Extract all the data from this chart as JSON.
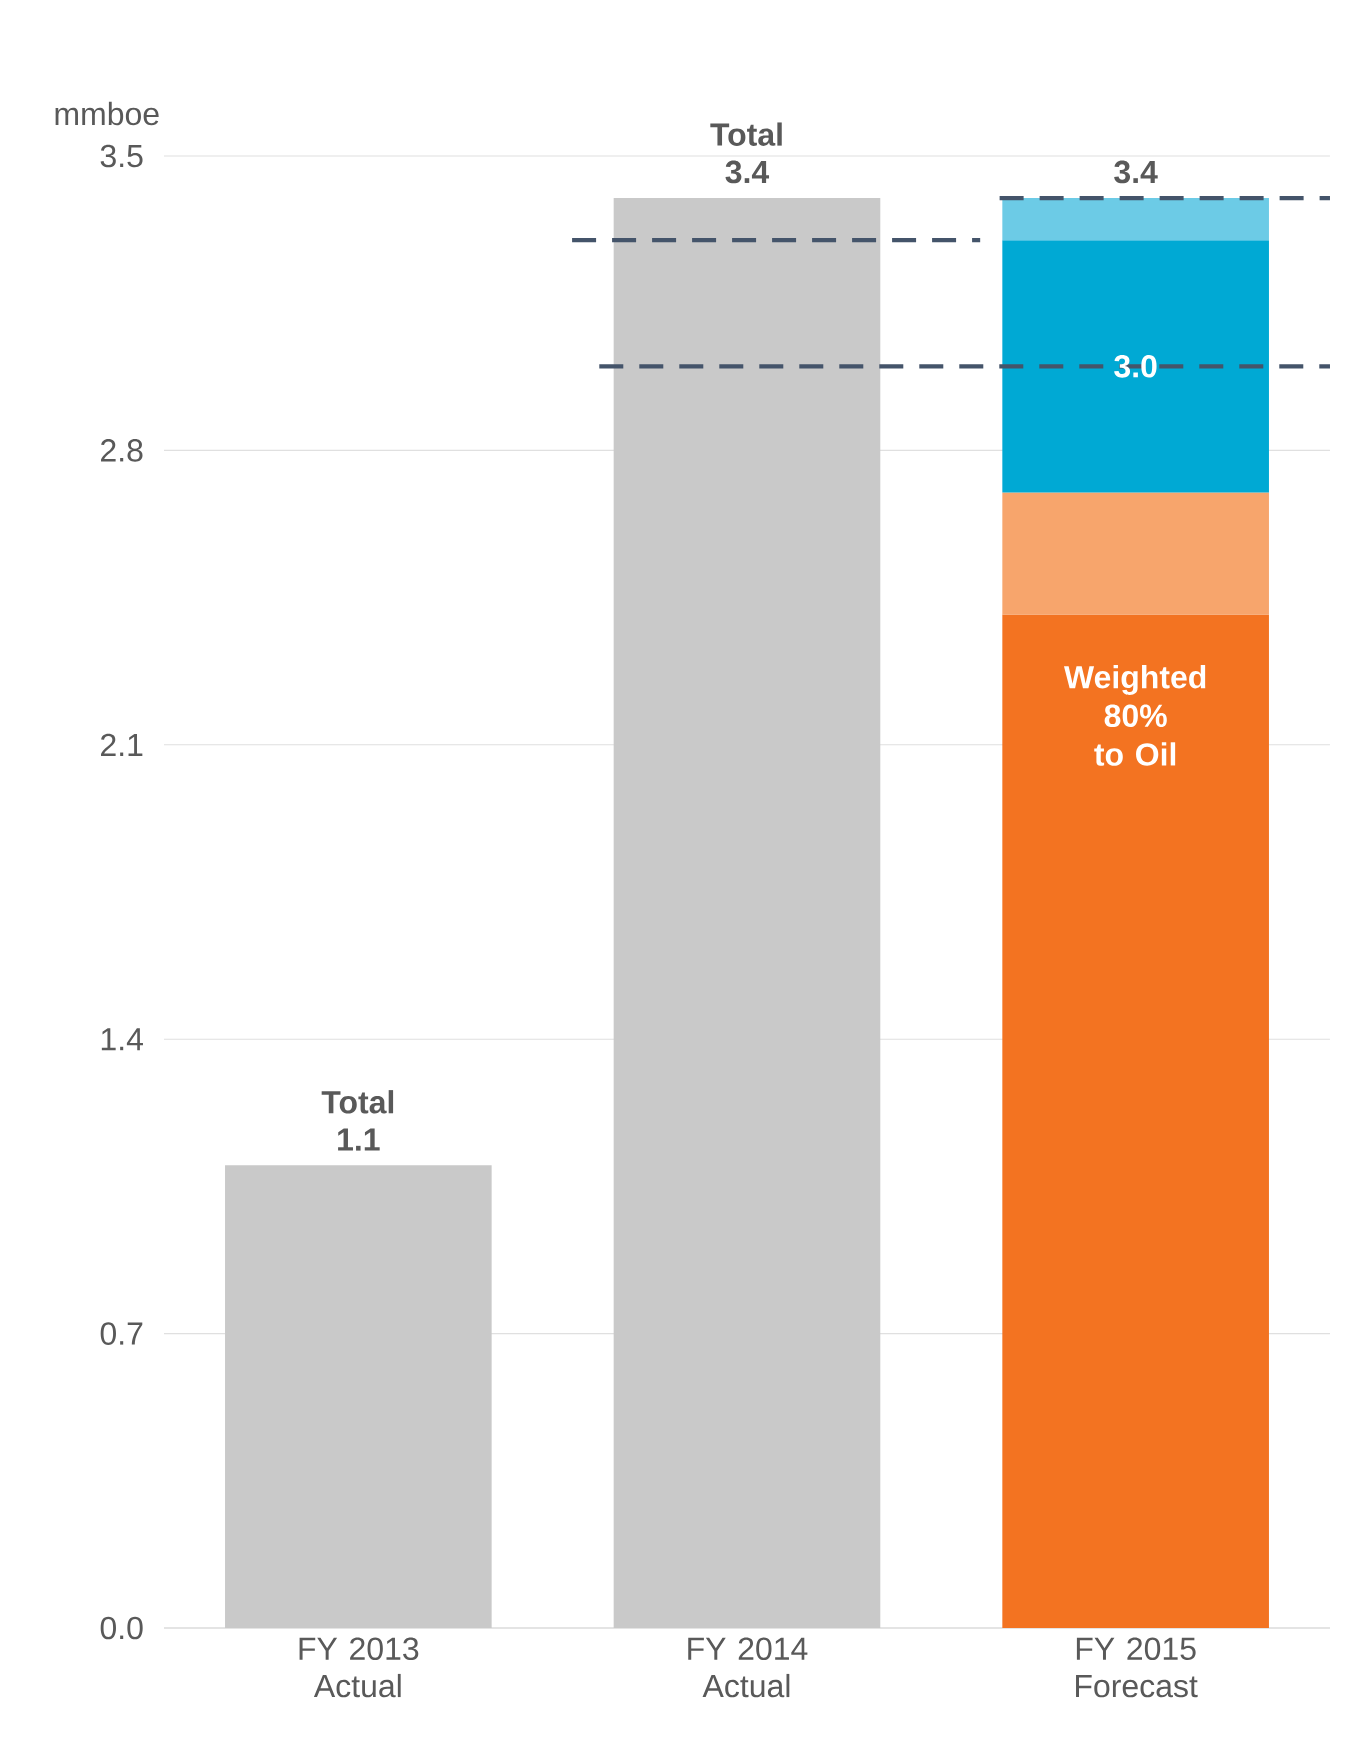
{
  "chart_data": {
    "type": "bar",
    "stacked": true,
    "ylabel": "mmboe",
    "categories": [
      "FY 2013 Actual",
      "FY 2014 Actual",
      "FY 2015 Forecast"
    ],
    "series": [
      {
        "color": "#c9c9c9",
        "values": [
          1.1,
          3.4,
          null
        ]
      },
      {
        "color": "#f37321",
        "values": [
          null,
          null,
          2.41
        ]
      },
      {
        "color": "#f7a56c",
        "values": [
          null,
          null,
          0.29
        ]
      },
      {
        "color": "#00a9d4",
        "values": [
          null,
          null,
          0.6
        ]
      },
      {
        "color": "#6ccbe6",
        "values": [
          null,
          null,
          0.1
        ]
      }
    ],
    "totals": [
      "Total 1.1",
      "Total 3.4",
      "3.4"
    ],
    "ref_lines": [
      {
        "axis": "y",
        "value": 3.3,
        "color": "#44546a",
        "line_style": "dashed"
      },
      {
        "axis": "y",
        "value": 3.0,
        "label": "3.0",
        "color": "#44546a",
        "line_style": "dashed"
      },
      {
        "axis": "y",
        "value": 3.4,
        "color": "#44546a",
        "line_style": "dashed"
      }
    ],
    "annotations": [
      "Weighted 80% to Oil"
    ],
    "ylim": [
      0,
      3.5
    ],
    "yticks": [
      {
        "value": 0,
        "label": "0.0"
      },
      0.7,
      1.4,
      2.1,
      2.8,
      3.5
    ],
    "grid": "y"
  }
}
